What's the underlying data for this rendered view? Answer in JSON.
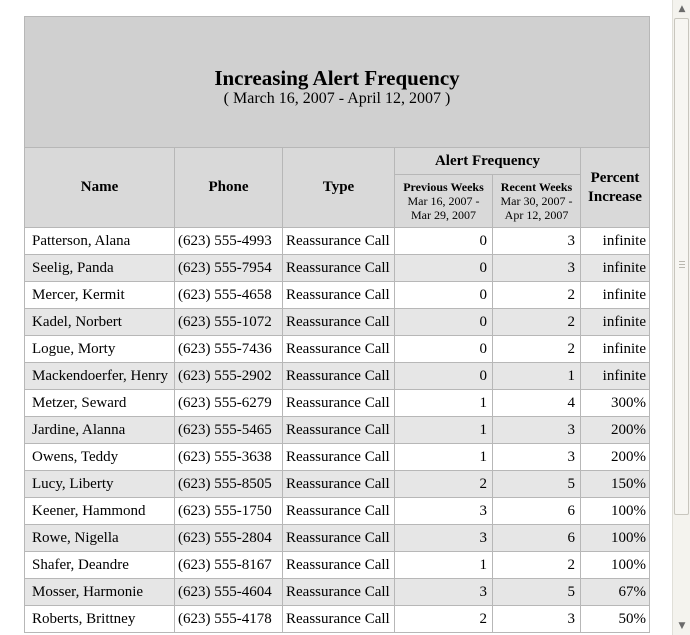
{
  "report": {
    "title": "Increasing Alert Frequency",
    "date_range": "( March 16, 2007 - April 12, 2007 )",
    "columns": {
      "name": "Name",
      "phone": "Phone",
      "type": "Type",
      "alert_frequency": "Alert Frequency",
      "previous_weeks": "Previous Weeks",
      "previous_range_1": "Mar 16, 2007 -",
      "previous_range_2": "Mar 29, 2007",
      "recent_weeks": "Recent Weeks",
      "recent_range_1": "Mar 30, 2007 -",
      "recent_range_2": "Apr 12, 2007",
      "percent_1": "Percent",
      "percent_2": "Increase"
    },
    "rows": [
      {
        "name": "Patterson, Alana",
        "phone": "(623) 555-4993",
        "type": "Reassurance Call",
        "prev": "0",
        "recent": "3",
        "pct": "infinite"
      },
      {
        "name": "Seelig, Panda",
        "phone": "(623) 555-7954",
        "type": "Reassurance Call",
        "prev": "0",
        "recent": "3",
        "pct": "infinite"
      },
      {
        "name": "Mercer, Kermit",
        "phone": "(623) 555-4658",
        "type": "Reassurance Call",
        "prev": "0",
        "recent": "2",
        "pct": "infinite"
      },
      {
        "name": "Kadel, Norbert",
        "phone": "(623) 555-1072",
        "type": "Reassurance Call",
        "prev": "0",
        "recent": "2",
        "pct": "infinite"
      },
      {
        "name": "Logue, Morty",
        "phone": "(623) 555-7436",
        "type": "Reassurance Call",
        "prev": "0",
        "recent": "2",
        "pct": "infinite"
      },
      {
        "name": "Mackendoerfer, Henry",
        "phone": "(623) 555-2902",
        "type": "Reassurance Call",
        "prev": "0",
        "recent": "1",
        "pct": "infinite"
      },
      {
        "name": "Metzer, Seward",
        "phone": "(623) 555-6279",
        "type": "Reassurance Call",
        "prev": "1",
        "recent": "4",
        "pct": "300%"
      },
      {
        "name": "Jardine, Alanna",
        "phone": "(623) 555-5465",
        "type": "Reassurance Call",
        "prev": "1",
        "recent": "3",
        "pct": "200%"
      },
      {
        "name": "Owens, Teddy",
        "phone": "(623) 555-3638",
        "type": "Reassurance Call",
        "prev": "1",
        "recent": "3",
        "pct": "200%"
      },
      {
        "name": "Lucy, Liberty",
        "phone": "(623) 555-8505",
        "type": "Reassurance Call",
        "prev": "2",
        "recent": "5",
        "pct": "150%"
      },
      {
        "name": "Keener, Hammond",
        "phone": "(623) 555-1750",
        "type": "Reassurance Call",
        "prev": "3",
        "recent": "6",
        "pct": "100%"
      },
      {
        "name": "Rowe, Nigella",
        "phone": "(623) 555-2804",
        "type": "Reassurance Call",
        "prev": "3",
        "recent": "6",
        "pct": "100%"
      },
      {
        "name": "Shafer, Deandre",
        "phone": "(623) 555-8167",
        "type": "Reassurance Call",
        "prev": "1",
        "recent": "2",
        "pct": "100%"
      },
      {
        "name": "Mosser, Harmonie",
        "phone": "(623) 555-4604",
        "type": "Reassurance Call",
        "prev": "3",
        "recent": "5",
        "pct": "67%"
      },
      {
        "name": "Roberts, Brittney",
        "phone": "(623) 555-4178",
        "type": "Reassurance Call",
        "prev": "2",
        "recent": "3",
        "pct": "50%"
      }
    ]
  },
  "scrollbar": {
    "up_icon": "arrow-up-icon",
    "down_icon": "arrow-down-icon"
  }
}
